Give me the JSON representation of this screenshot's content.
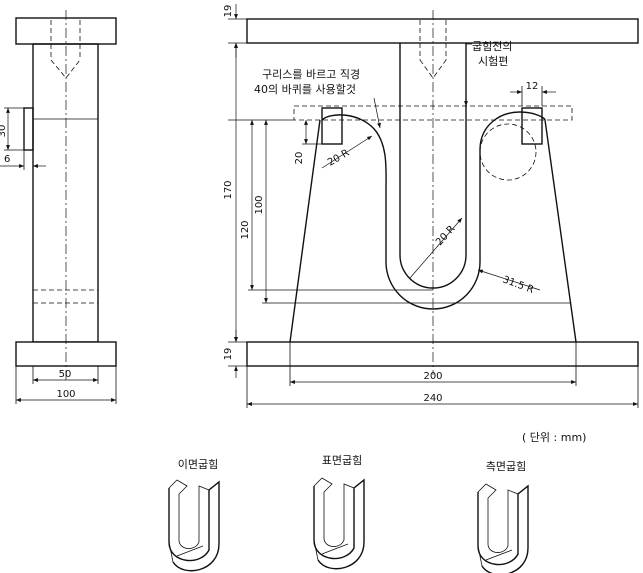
{
  "unit_note": "( 단위 : mm)",
  "notes": {
    "grease_line1": "구리스를 바르고 직경",
    "grease_line2": "40의 바퀴를 사용할것",
    "specimen_line1": "굽힘전의",
    "specimen_line2": "시험편"
  },
  "dimensions": {
    "side_30": "30",
    "side_6": "6",
    "side_50": "50",
    "side_100": "100",
    "top_19": "19",
    "bottom_19": "19",
    "h_170": "170",
    "h_120": "120",
    "h_100": "100",
    "h_20": "20",
    "w_12": "12",
    "r_20_left": "20 R",
    "r_20_inner": "20 R",
    "r_31_5": "31.5 R",
    "w_200": "200",
    "w_240": "240"
  },
  "specimens": [
    {
      "label": "이면굽힘"
    },
    {
      "label": "표면굽힘"
    },
    {
      "label": "측면굽힘"
    }
  ]
}
